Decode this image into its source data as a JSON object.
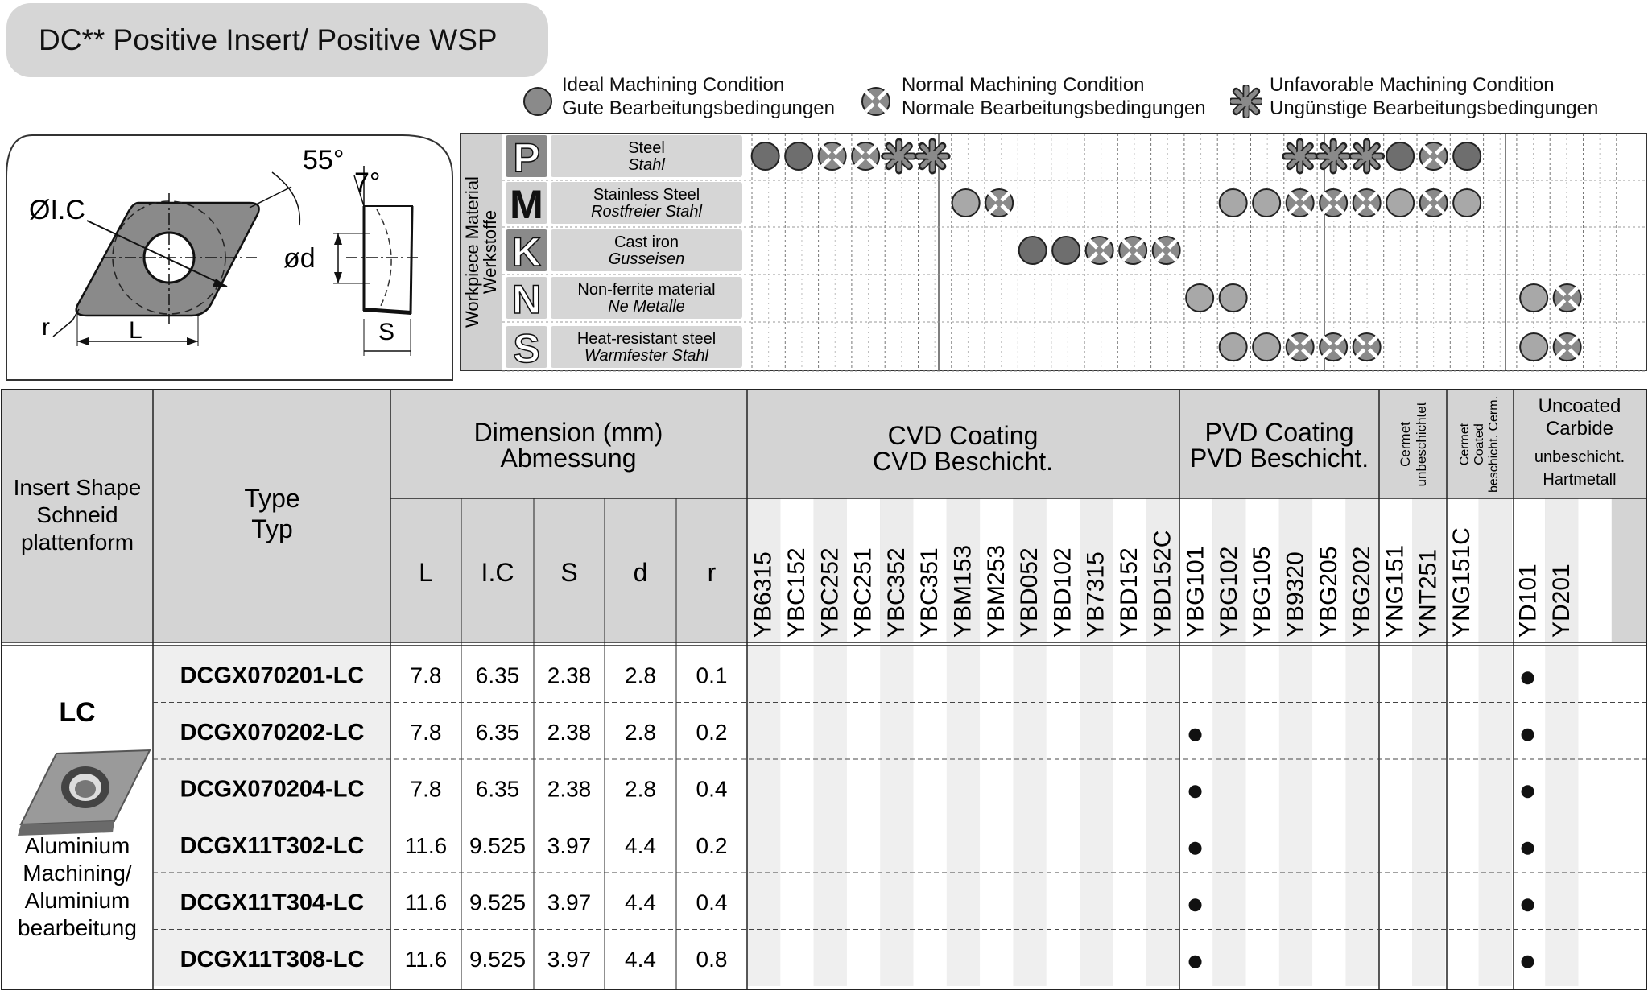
{
  "title": "DC** Positive Insert/ Positive WSP",
  "legend": [
    {
      "line1": "Ideal Machining Condition",
      "line2": "Gute Bearbeitungsbedingungen",
      "icon": "ideal-condition-icon"
    },
    {
      "line1": "Normal Machining Condition",
      "line2": "Normale Bearbeitungsbedingungen",
      "icon": "normal-condition-icon"
    },
    {
      "line1": "Unfavorable Machining Condition",
      "line2": "Ungünstige Bearbeitungsbedingungen",
      "icon": "unfavorable-condition-icon"
    }
  ],
  "diagram": {
    "angle_55": "55°",
    "angle_7": "7°",
    "label_ic": "ØI.C",
    "label_d": "ød",
    "label_r": "r",
    "label_l": "L",
    "label_s": "S"
  },
  "workpiece": {
    "side_label_1": "Workpiece Material",
    "side_label_2": "Werkstoffe",
    "rows": [
      {
        "letter": "P",
        "en": "Steel",
        "de": "Stahl",
        "fill": "#8a8a8a",
        "letter_color": "#ffffff",
        "marks": {
          "0": "ideal",
          "1": "ideal",
          "2": "normal",
          "3": "normal",
          "4": "unfavorable",
          "5": "unfavorable",
          "16": "unfavorable",
          "17": "unfavorable",
          "18": "unfavorable",
          "19": "ideal",
          "20": "normal",
          "21": "ideal"
        }
      },
      {
        "letter": "M",
        "en": "Stainless Steel",
        "de": "Rostfreier Stahl",
        "fill": "#d0d0d0",
        "letter_color": "#111111",
        "marks": {
          "6": "ideal",
          "7": "normal",
          "14": "ideal",
          "15": "ideal",
          "16": "normal",
          "17": "normal",
          "18": "normal",
          "19": "ideal",
          "20": "normal",
          "21": "ideal"
        }
      },
      {
        "letter": "K",
        "en": "Cast iron",
        "de": "Gusseisen",
        "fill": "#8a8a8a",
        "letter_color": "#ffffff",
        "marks": {
          "8": "ideal",
          "9": "ideal",
          "10": "normal",
          "11": "normal",
          "12": "normal"
        }
      },
      {
        "letter": "N",
        "en": "Non-ferrite material",
        "de": "Ne Metalle",
        "fill": "#d0d0d0",
        "letter_color": "#ffffff",
        "marks": {
          "13": "ideal",
          "14": "ideal",
          "23": "ideal",
          "24": "normal"
        }
      },
      {
        "letter": "S",
        "en": "Heat-resistant steel",
        "de": "Warmfester Stahl",
        "fill": "#d0d0d0",
        "letter_color": "#ffffff",
        "marks": {
          "14": "ideal",
          "15": "ideal",
          "16": "normal",
          "17": "normal",
          "18": "normal",
          "23": "ideal",
          "24": "normal"
        }
      }
    ]
  },
  "table": {
    "header": {
      "shape_1": "Insert Shape",
      "shape_2": "Schneid",
      "shape_3": "plattenform",
      "type_1": "Type",
      "type_2": "Typ",
      "dim_1": "Dimension (mm)",
      "dim_2": "Abmessung",
      "dim_cols": [
        "L",
        "I.C",
        "S",
        "d",
        "r"
      ],
      "cvd_1": "CVD Coating",
      "cvd_2": "CVD Beschicht.",
      "pvd_1": "PVD Coating",
      "pvd_2": "PVD Beschicht.",
      "cermet_1": "Cermet",
      "cermet_2": "unbeschichtet",
      "ccermet_1": "Cermet",
      "ccermet_2": "Coated",
      "ccermet_3": "beschicht. Cerm.",
      "unc_1": "Uncoated",
      "unc_2": "Carbide",
      "unc_3": "unbeschicht.",
      "unc_4": "Hartmetall"
    },
    "grades": [
      "YB6315",
      "YBC152",
      "YBC252",
      "YBC251",
      "YBC352",
      "YBC351",
      "YBM153",
      "YBM253",
      "YBD052",
      "YBD102",
      "YB7315",
      "YBD152",
      "YBD152C",
      "YBG101",
      "YBG102",
      "YBG105",
      "YB9320",
      "YBG205",
      "YBG202",
      "YNG151",
      "YNT251",
      "YNG151C",
      "",
      "YD101",
      "YD201",
      ""
    ],
    "shape_code": "LC",
    "shape_desc": [
      "Aluminium",
      "Machining/",
      "Aluminium",
      "bearbeitung"
    ],
    "rows": [
      {
        "type": "DCGX070201-LC",
        "L": "7.8",
        "IC": "6.35",
        "S": "2.38",
        "d": "2.8",
        "r": "0.1",
        "dots": [
          23
        ]
      },
      {
        "type": "DCGX070202-LC",
        "L": "7.8",
        "IC": "6.35",
        "S": "2.38",
        "d": "2.8",
        "r": "0.2",
        "dots": [
          13,
          23
        ]
      },
      {
        "type": "DCGX070204-LC",
        "L": "7.8",
        "IC": "6.35",
        "S": "2.38",
        "d": "2.8",
        "r": "0.4",
        "dots": [
          13,
          23
        ]
      },
      {
        "type": "DCGX11T302-LC",
        "L": "11.6",
        "IC": "9.525",
        "S": "3.97",
        "d": "4.4",
        "r": "0.2",
        "dots": [
          13,
          23
        ]
      },
      {
        "type": "DCGX11T304-LC",
        "L": "11.6",
        "IC": "9.525",
        "S": "3.97",
        "d": "4.4",
        "r": "0.4",
        "dots": [
          13,
          23
        ]
      },
      {
        "type": "DCGX11T308-LC",
        "L": "11.6",
        "IC": "9.525",
        "S": "3.97",
        "d": "4.4",
        "r": "0.8",
        "dots": [
          13,
          23
        ]
      }
    ]
  }
}
